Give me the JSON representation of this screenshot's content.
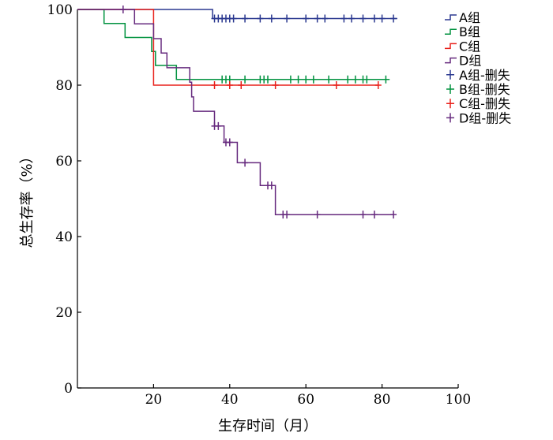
{
  "chart_data": {
    "type": "line",
    "title": "",
    "xlabel": "生存时间（月）",
    "ylabel": "总生存率（%）",
    "xlim": [
      0,
      100
    ],
    "ylim": [
      0,
      100
    ],
    "xticks": [
      20,
      40,
      60,
      80,
      100
    ],
    "yticks": [
      0,
      20,
      40,
      60,
      80,
      100
    ],
    "legend_position": "top-right",
    "series": [
      {
        "name": "A组",
        "censor_name": "A组-删失",
        "color": "#2b3990",
        "steps": [
          [
            0,
            100
          ],
          [
            35.5,
            100
          ],
          [
            35.5,
            97.6
          ],
          [
            84,
            97.6
          ]
        ],
        "censored": [
          [
            36,
            97.6
          ],
          [
            37,
            97.6
          ],
          [
            38,
            97.6
          ],
          [
            39,
            97.6
          ],
          [
            40,
            97.6
          ],
          [
            41,
            97.6
          ],
          [
            44,
            97.6
          ],
          [
            48,
            97.6
          ],
          [
            51,
            97.6
          ],
          [
            55,
            97.6
          ],
          [
            60,
            97.6
          ],
          [
            63,
            97.6
          ],
          [
            65,
            97.6
          ],
          [
            70,
            97.6
          ],
          [
            72,
            97.6
          ],
          [
            75,
            97.6
          ],
          [
            78,
            97.6
          ],
          [
            80,
            97.6
          ],
          [
            83,
            97.6
          ]
        ]
      },
      {
        "name": "B组",
        "censor_name": "B组-删失",
        "color": "#00923f",
        "steps": [
          [
            0,
            100
          ],
          [
            7,
            100
          ],
          [
            7,
            96.3
          ],
          [
            12.5,
            96.3
          ],
          [
            12.5,
            92.6
          ],
          [
            19.5,
            92.6
          ],
          [
            19.5,
            88.9
          ],
          [
            20.5,
            88.9
          ],
          [
            20.5,
            85.2
          ],
          [
            26,
            85.2
          ],
          [
            26,
            81.5
          ],
          [
            82,
            81.5
          ]
        ],
        "censored": [
          [
            38,
            81.5
          ],
          [
            39,
            81.5
          ],
          [
            40,
            81.5
          ],
          [
            44,
            81.5
          ],
          [
            48,
            81.5
          ],
          [
            49,
            81.5
          ],
          [
            50,
            81.5
          ],
          [
            56,
            81.5
          ],
          [
            58,
            81.5
          ],
          [
            60,
            81.5
          ],
          [
            62,
            81.5
          ],
          [
            66,
            81.5
          ],
          [
            71,
            81.5
          ],
          [
            73,
            81.5
          ],
          [
            75,
            81.5
          ],
          [
            76,
            81.5
          ],
          [
            81,
            81.5
          ]
        ]
      },
      {
        "name": "C组",
        "censor_name": "C组-删失",
        "color": "#e8211b",
        "steps": [
          [
            0,
            100
          ],
          [
            20,
            100
          ],
          [
            20,
            80
          ],
          [
            79,
            80
          ]
        ],
        "censored": [
          [
            36,
            80
          ],
          [
            40,
            80
          ],
          [
            43,
            80
          ],
          [
            52,
            80
          ],
          [
            68,
            80
          ],
          [
            79,
            80
          ]
        ]
      },
      {
        "name": "D组",
        "censor_name": "D组-删失",
        "color": "#662a7e",
        "steps": [
          [
            0,
            100
          ],
          [
            15,
            100
          ],
          [
            15,
            96.2
          ],
          [
            20,
            96.2
          ],
          [
            20,
            92.3
          ],
          [
            22,
            92.3
          ],
          [
            22,
            88.5
          ],
          [
            23.5,
            88.5
          ],
          [
            23.5,
            84.6
          ],
          [
            29.5,
            84.6
          ],
          [
            29.5,
            80.8
          ],
          [
            30,
            80.8
          ],
          [
            30,
            76.9
          ],
          [
            30.5,
            76.9
          ],
          [
            30.5,
            73.1
          ],
          [
            36,
            73.1
          ],
          [
            36,
            69.2
          ],
          [
            38.5,
            69.2
          ],
          [
            38.5,
            64.9
          ],
          [
            42,
            64.9
          ],
          [
            42,
            59.5
          ],
          [
            48,
            59.5
          ],
          [
            48,
            53.5
          ],
          [
            52,
            53.5
          ],
          [
            52,
            45.8
          ],
          [
            83,
            45.8
          ]
        ],
        "censored": [
          [
            12,
            100
          ],
          [
            36,
            69.2
          ],
          [
            37,
            69.2
          ],
          [
            39,
            64.9
          ],
          [
            40,
            64.9
          ],
          [
            44,
            59.5
          ],
          [
            50,
            53.5
          ],
          [
            51,
            53.5
          ],
          [
            54,
            45.8
          ],
          [
            55,
            45.8
          ],
          [
            63,
            45.8
          ],
          [
            75,
            45.8
          ],
          [
            78,
            45.8
          ],
          [
            83,
            45.8
          ]
        ]
      }
    ]
  }
}
